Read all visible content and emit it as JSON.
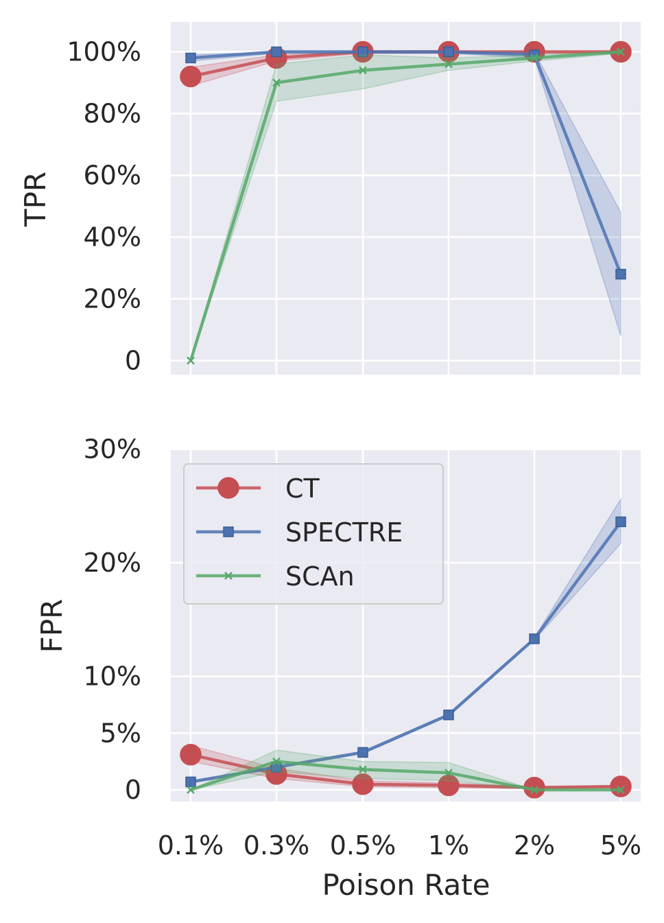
{
  "chart_data": [
    {
      "type": "line",
      "panel": "top",
      "categories": [
        "0.1%",
        "0.3%",
        "0.5%",
        "1%",
        "2%",
        "5%"
      ],
      "xlabel": "",
      "ylabel": "TPR",
      "ylim": [
        -5,
        110
      ],
      "yticks": [
        0,
        20,
        40,
        60,
        80,
        100
      ],
      "yticklabels": [
        "0",
        "20%",
        "40%",
        "60%",
        "80%",
        "100%"
      ],
      "grid": true,
      "series": [
        {
          "name": "CT",
          "color": "#c44e52",
          "marker": "circle",
          "values": [
            92,
            98,
            100,
            100,
            100,
            100
          ],
          "lower": [
            89,
            97,
            99.5,
            99.5,
            99.5,
            99.5
          ],
          "upper": [
            95,
            99,
            100,
            100,
            100,
            100
          ]
        },
        {
          "name": "SPECTRE",
          "color": "#4c72b0",
          "marker": "square",
          "values": [
            98,
            100,
            100,
            100,
            99,
            28
          ],
          "lower": [
            97,
            99.5,
            99.5,
            99.5,
            98,
            8
          ],
          "upper": [
            99,
            100,
            100,
            100,
            100,
            48
          ]
        },
        {
          "name": "SCAn",
          "color": "#55a868",
          "marker": "x",
          "values": [
            0,
            90,
            94,
            96,
            98,
            100
          ],
          "lower": [
            0,
            84,
            88,
            94,
            97,
            99.5
          ],
          "upper": [
            0,
            96,
            99,
            98,
            99,
            100
          ]
        }
      ]
    },
    {
      "type": "line",
      "panel": "bottom",
      "categories": [
        "0.1%",
        "0.3%",
        "0.5%",
        "1%",
        "2%",
        "5%"
      ],
      "xlabel": "Poison Rate",
      "ylabel": "FPR",
      "ylim": [
        -1,
        30
      ],
      "yticks": [
        0,
        5,
        10,
        20,
        30
      ],
      "yticklabels": [
        "0",
        "5%",
        "10%",
        "20%",
        "30%"
      ],
      "grid": true,
      "legend": "upper-left",
      "series": [
        {
          "name": "CT",
          "color": "#c44e52",
          "marker": "circle",
          "values": [
            3.1,
            1.4,
            0.5,
            0.4,
            0.2,
            0.3
          ],
          "lower": [
            2.5,
            1.0,
            0.3,
            0.2,
            0.1,
            0.2
          ],
          "upper": [
            3.9,
            1.9,
            0.8,
            0.6,
            0.3,
            0.4
          ]
        },
        {
          "name": "SPECTRE",
          "color": "#4c72b0",
          "marker": "square",
          "values": [
            0.7,
            2.0,
            3.3,
            6.6,
            13.3,
            23.6
          ],
          "lower": [
            0.6,
            1.9,
            3.2,
            6.5,
            13.2,
            21.7
          ],
          "upper": [
            0.8,
            2.1,
            3.4,
            6.7,
            13.4,
            25.6
          ]
        },
        {
          "name": "SCAn",
          "color": "#55a868",
          "marker": "x",
          "values": [
            0,
            2.5,
            1.8,
            1.5,
            0,
            0
          ],
          "lower": [
            0,
            1.6,
            1.0,
            0.8,
            0,
            0
          ],
          "upper": [
            0,
            3.5,
            2.5,
            2.4,
            0,
            0
          ]
        }
      ]
    }
  ]
}
